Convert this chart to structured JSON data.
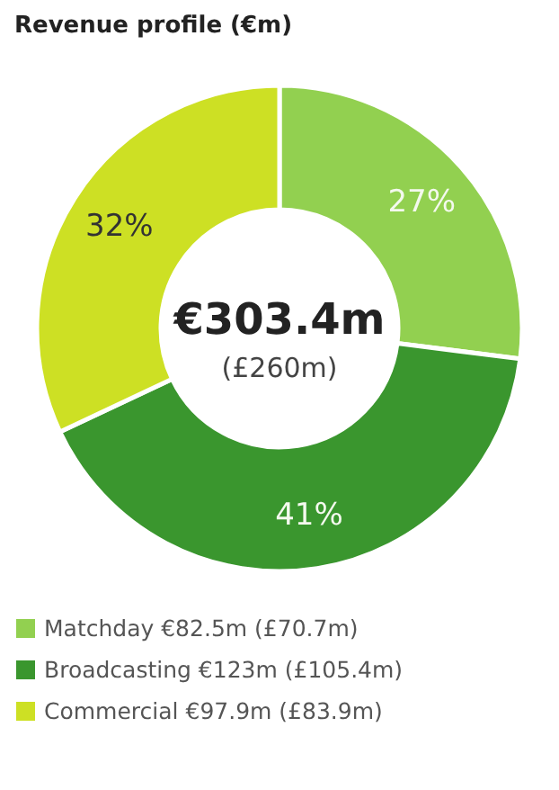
{
  "chart_data": {
    "type": "donut",
    "title": "Revenue profile (€m)",
    "categories": [
      "Matchday €82.5m (£70.7m)",
      "Broadcasting €123m (£105.4m)",
      "Commercial €97.9m (£83.9m)"
    ],
    "values": [
      27,
      41,
      32
    ],
    "colors": [
      "#92d050",
      "#3a962e",
      "#cde024"
    ],
    "value_labels": [
      "27%",
      "41%",
      "32%"
    ],
    "annotations": [
      "€303.4m",
      "(£260m)"
    ],
    "legend": "bottom left"
  }
}
